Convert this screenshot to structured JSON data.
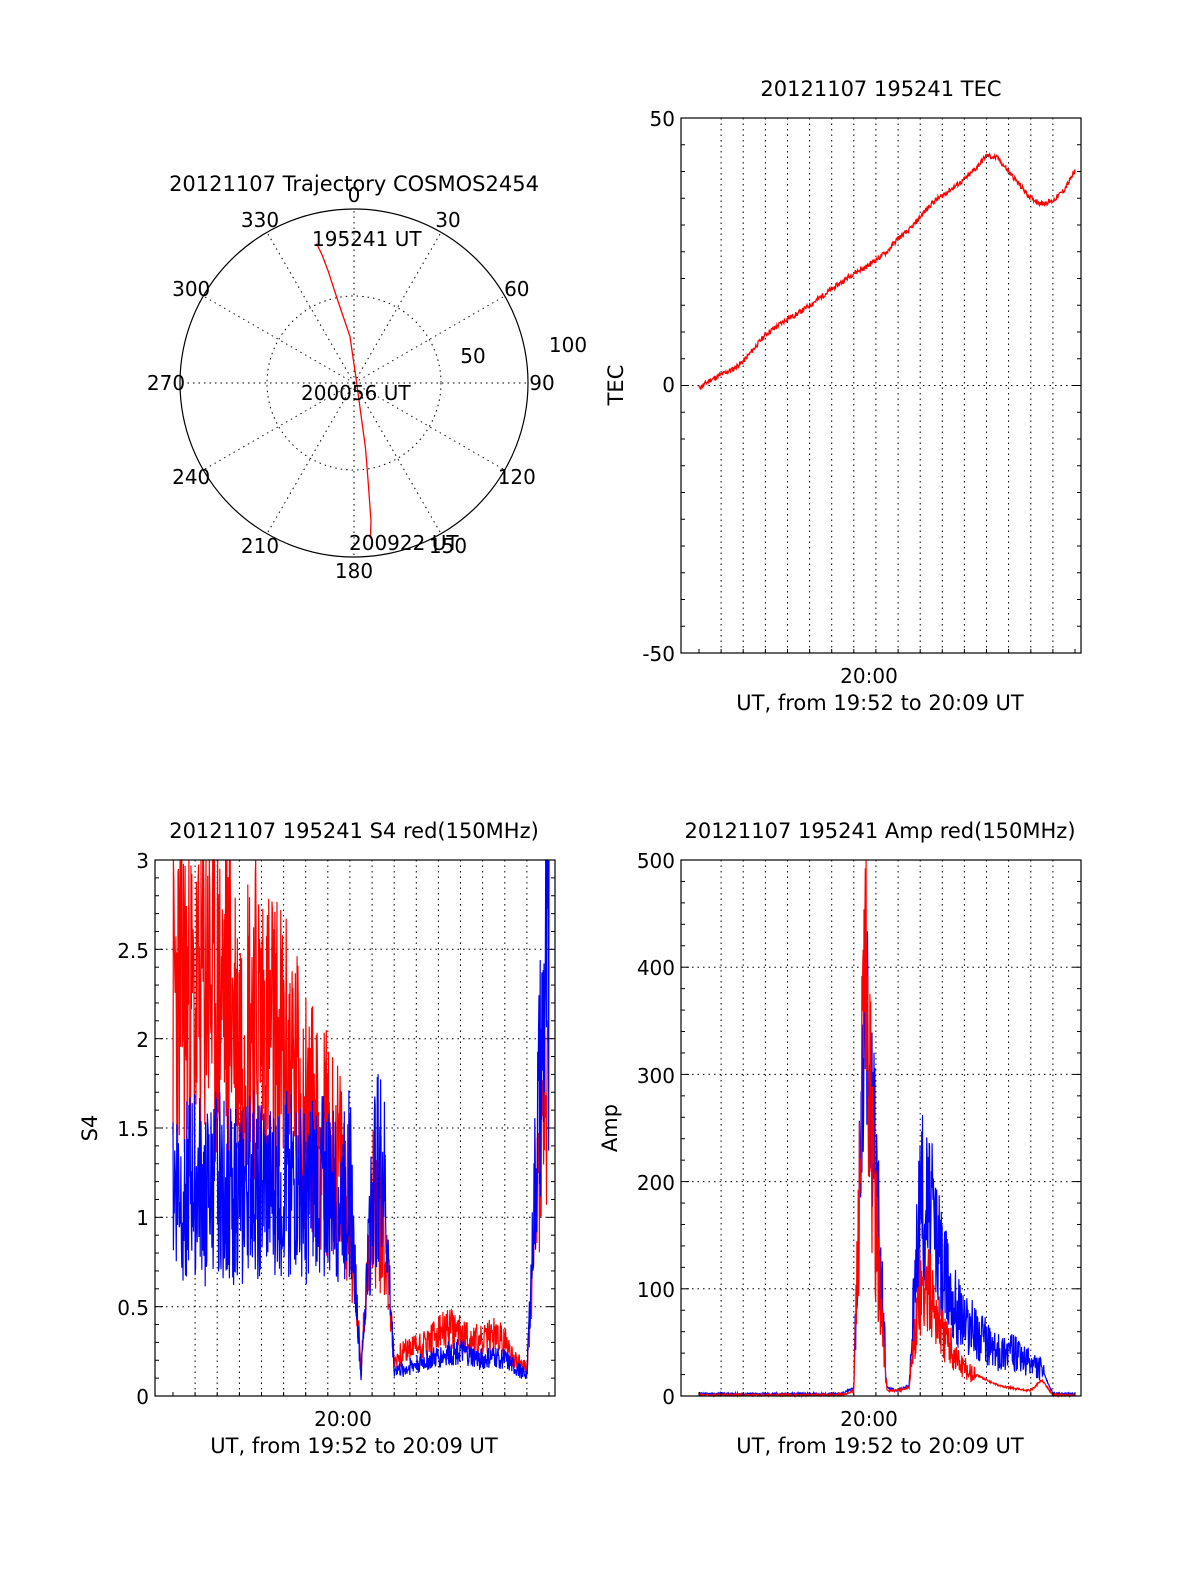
{
  "chart_data": [
    {
      "type": "polar",
      "title": "20121107 Trajectory COSMOS2454",
      "angle_labels": [
        "0",
        "30",
        "60",
        "90",
        "120",
        "150",
        "180",
        "210",
        "240",
        "270",
        "300",
        "330"
      ],
      "radius_labels": [
        "50",
        "100"
      ],
      "rlim": [
        0,
        100
      ],
      "grid": true,
      "annotations": [
        "195241 UT",
        "200056 UT",
        "200922 UT"
      ],
      "series": [
        {
          "color": "#ff0000",
          "points": [
            [
              345,
              83
            ],
            [
              346,
              76
            ],
            [
              347,
              66
            ],
            [
              348,
              55
            ],
            [
              350,
              42
            ],
            [
              355,
              27
            ],
            [
              10,
              5
            ],
            [
              165,
              12
            ],
            [
              170,
              38
            ],
            [
              172,
              60
            ],
            [
              173,
              80
            ],
            [
              174,
              90
            ]
          ]
        }
      ]
    },
    {
      "type": "line",
      "title": "20121107 195241 TEC",
      "ylabel": "TEC",
      "xlabel": "UT, from 19:52 to 20:09 UT",
      "x_tick_label": "20:00",
      "ylim": [
        -50,
        50
      ],
      "y_ticks": [
        "50",
        "0",
        "-50"
      ],
      "grid": true,
      "series": [
        {
          "color": "#ff0000",
          "x_minutes": [
            0,
            0.5,
            1,
            1.5,
            2,
            2.5,
            3,
            3.5,
            4,
            4.5,
            5,
            5.5,
            6,
            6.5,
            7,
            7.5,
            8,
            8.5,
            9,
            9.5,
            10,
            10.5,
            11,
            11.5,
            12,
            12.5,
            13,
            13.5,
            14,
            14.5,
            15,
            15.5,
            16,
            16.5,
            17
          ],
          "values": [
            -0.5,
            1,
            2,
            3,
            4.5,
            7,
            9.5,
            11,
            12.5,
            13.5,
            15,
            16.5,
            18,
            19.5,
            21,
            22,
            23.5,
            25,
            27.5,
            29,
            31.5,
            34,
            35.5,
            37,
            38.5,
            40.5,
            43,
            42.5,
            40,
            37.5,
            35,
            34,
            34.5,
            36.5,
            40
          ]
        }
      ]
    },
    {
      "type": "line",
      "title": "20121107 195241 S4 red(150MHz)",
      "ylabel": "S4",
      "xlabel": "UT, from 19:52 to 20:09 UT",
      "x_tick_label": "20:00",
      "ylim": [
        0,
        3
      ],
      "y_ticks": [
        "0",
        "0.5",
        "1",
        "1.5",
        "2",
        "2.5",
        "3"
      ],
      "grid": true,
      "series": [
        {
          "color": "#ff0000",
          "x_minutes": [
            0,
            0.5,
            1,
            1.5,
            2,
            2.5,
            3,
            3.5,
            4,
            4.5,
            5,
            5.5,
            6,
            6.5,
            7,
            7.5,
            8,
            8.5,
            9,
            9.5,
            10,
            10.5,
            11,
            11.5,
            12,
            12.5,
            13,
            13.5,
            14,
            14.5,
            15,
            15.5,
            16,
            16.5,
            17
          ],
          "values": [
            2.2,
            2.3,
            2.1,
            2.4,
            2.2,
            2.3,
            2.0,
            2.2,
            2.1,
            2.0,
            1.9,
            1.8,
            1.6,
            1.5,
            1.4,
            1.3,
            1.1,
            0.15,
            1.1,
            1.0,
            0.2,
            0.25,
            0.28,
            0.3,
            0.35,
            0.38,
            0.35,
            0.32,
            0.3,
            0.35,
            0.3,
            0.2,
            0.15,
            1.2,
            1.7
          ]
        },
        {
          "color": "#0000ff",
          "x_minutes": [
            0,
            0.5,
            1,
            1.5,
            2,
            2.5,
            3,
            3.5,
            4,
            4.5,
            5,
            5.5,
            6,
            6.5,
            7,
            7.5,
            8,
            8.5,
            9,
            9.5,
            10,
            10.5,
            11,
            11.5,
            12,
            12.5,
            13,
            13.5,
            14,
            14.5,
            15,
            15.5,
            16,
            16.5,
            17
          ],
          "values": [
            1.2,
            1.15,
            1.2,
            1.1,
            1.2,
            1.15,
            1.1,
            1.2,
            1.15,
            1.1,
            1.2,
            1.15,
            1.1,
            1.2,
            1.15,
            1.1,
            1.2,
            0.1,
            1.2,
            1.3,
            0.15,
            0.15,
            0.18,
            0.2,
            0.22,
            0.24,
            0.25,
            0.22,
            0.2,
            0.22,
            0.2,
            0.15,
            0.12,
            1.5,
            2.5
          ]
        }
      ]
    },
    {
      "type": "line",
      "title": "20121107 195241 Amp red(150MHz)",
      "ylabel": "Amp",
      "xlabel": "UT, from 19:52 to 20:09 UT",
      "x_tick_label": "20:00",
      "ylim": [
        0,
        500
      ],
      "y_ticks": [
        "0",
        "100",
        "200",
        "300",
        "400",
        "500"
      ],
      "grid": true,
      "series": [
        {
          "color": "#0000ff",
          "x_minutes": [
            0,
            1,
            2,
            3,
            4,
            5,
            6,
            6.5,
            7,
            7.5,
            8,
            8.5,
            9,
            9.5,
            10,
            10.5,
            11,
            11.5,
            12,
            12.5,
            13,
            13.5,
            14,
            14.5,
            15,
            15.5,
            16,
            16.5,
            17
          ],
          "values": [
            2,
            2,
            2,
            2,
            2,
            2,
            2,
            2,
            8,
            360,
            200,
            8,
            5,
            10,
            190,
            170,
            120,
            90,
            70,
            60,
            50,
            40,
            45,
            35,
            30,
            25,
            2,
            2,
            2
          ]
        },
        {
          "color": "#ff0000",
          "x_minutes": [
            0,
            1,
            2,
            3,
            4,
            5,
            6,
            6.5,
            7,
            7.5,
            8,
            8.5,
            9,
            9.5,
            10,
            10.5,
            11,
            11.5,
            12,
            12.5,
            13,
            13.5,
            14,
            14.5,
            15,
            15.5,
            16,
            16.5,
            17
          ],
          "values": [
            1,
            1,
            1,
            1,
            1,
            1,
            1,
            1,
            5,
            380,
            150,
            5,
            5,
            8,
            100,
            95,
            60,
            40,
            25,
            20,
            15,
            10,
            8,
            6,
            5,
            15,
            1,
            1,
            1
          ]
        }
      ]
    }
  ]
}
